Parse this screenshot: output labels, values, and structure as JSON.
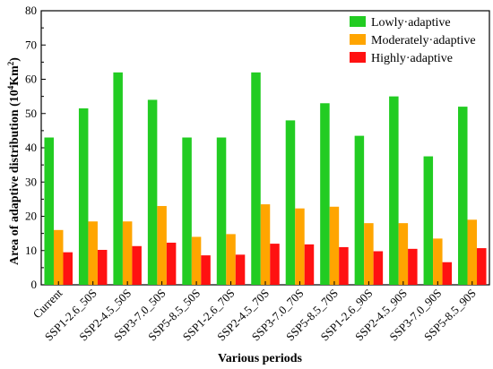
{
  "chart_data": {
    "type": "bar",
    "categories": [
      "Current",
      "SSP1-2.6_50S",
      "SSP2-4.5_50S",
      "SSP3-7.0_50S",
      "SSP5-8.5_50S",
      "SSP1-2.6_70S",
      "SSP2-4.5_70S",
      "SSP3-7.0_70S",
      "SSP5-8.5_70S",
      "SSP1-2.6_90S",
      "SSP2-4.5_90S",
      "SSP3-7.0_90S",
      "SSP5-8.5_90S"
    ],
    "series": [
      {
        "name": "Lowly·adaptive",
        "color": "#22cc22",
        "values": [
          43,
          51.5,
          62,
          54,
          43,
          43,
          62,
          48,
          53,
          43.5,
          55,
          37.5,
          52
        ]
      },
      {
        "name": "Moderately·adaptive",
        "color": "#ffa500",
        "values": [
          16,
          18.5,
          18.5,
          23,
          14,
          14.8,
          23.5,
          22.3,
          22.8,
          18,
          18,
          13.5,
          19
        ]
      },
      {
        "name": "Highly·adaptive",
        "color": "#ff1111",
        "values": [
          9.5,
          10.2,
          11.3,
          12.3,
          8.6,
          8.8,
          12,
          11.8,
          11,
          9.8,
          10.5,
          6.6,
          10.7
        ]
      }
    ],
    "xlabel": "Various periods",
    "ylabel_main": "Area of adaptive distribution (10",
    "ylabel_sup1": "4",
    "ylabel_mid": "Km",
    "ylabel_sup2": "2",
    "ylabel_end": ")",
    "ylim": [
      0,
      80
    ],
    "yticks": [
      0,
      10,
      20,
      30,
      40,
      50,
      60,
      70,
      80
    ],
    "legend_position": "top-right",
    "grid": false
  }
}
